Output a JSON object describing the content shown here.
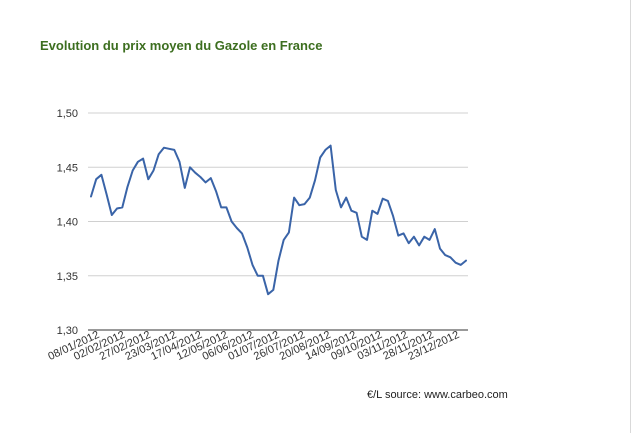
{
  "chart_data": {
    "type": "line",
    "title": "Evolution du prix moyen du Gazole en France",
    "xlabel": "",
    "ylabel": "",
    "ylim": [
      1.3,
      1.5
    ],
    "yticks": [
      "1,50",
      "1,45",
      "1,40",
      "1,35",
      "1,30"
    ],
    "ytick_values": [
      1.5,
      1.45,
      1.4,
      1.35,
      1.3
    ],
    "grid": true,
    "legend": "none",
    "x_tick_labels": [
      "08/01/2012",
      "02/02/2012",
      "27/02/2012",
      "23/03/2012",
      "17/04/2012",
      "12/05/2012",
      "06/06/2012",
      "01/07/2012",
      "26/07/2012",
      "20/08/2012",
      "14/09/2012",
      "09/10/2012",
      "03/11/2012",
      "28/11/2012",
      "23/12/2012"
    ],
    "series": [
      {
        "values": [
          1.423,
          1.439,
          1.443,
          1.425,
          1.406,
          1.412,
          1.413,
          1.432,
          1.447,
          1.455,
          1.458,
          1.439,
          1.447,
          1.462,
          1.468,
          1.467,
          1.466,
          1.455,
          1.431,
          1.45,
          1.445,
          1.441,
          1.436,
          1.44,
          1.428,
          1.413,
          1.413,
          1.4,
          1.394,
          1.389,
          1.376,
          1.36,
          1.35,
          1.35,
          1.333,
          1.337,
          1.364,
          1.383,
          1.39,
          1.422,
          1.415,
          1.416,
          1.422,
          1.438,
          1.459,
          1.466,
          1.47,
          1.429,
          1.413,
          1.422,
          1.41,
          1.408,
          1.386,
          1.383,
          1.41,
          1.407,
          1.421,
          1.419,
          1.405,
          1.387,
          1.389,
          1.38,
          1.386,
          1.378,
          1.386,
          1.383,
          1.393,
          1.375,
          1.369,
          1.367,
          1.362,
          1.36,
          1.364
        ]
      }
    ],
    "colors": {
      "line": "#3a64a8",
      "grid": "#d0d0d0",
      "axis": "#333333"
    }
  },
  "source_text": "€/L source: www.carbeo.com"
}
